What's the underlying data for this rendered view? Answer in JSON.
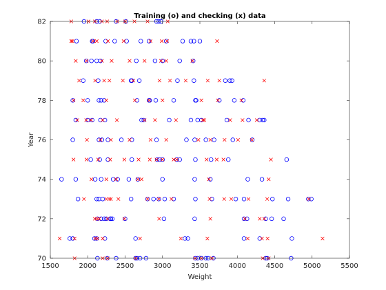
{
  "chart_data": {
    "type": "scatter",
    "title": "Training (o) and checking (x) data",
    "xlabel": "Weight",
    "ylabel": "Year",
    "xlim": [
      1500,
      5500
    ],
    "ylim": [
      70,
      82
    ],
    "xticks": [
      "1500",
      "2000",
      "2500",
      "3000",
      "3500",
      "4000",
      "4500",
      "5000",
      "5500"
    ],
    "yticks": [
      "70",
      "72",
      "74",
      "76",
      "78",
      "80",
      "82"
    ],
    "grid": false,
    "legend": "none",
    "series": [
      {
        "marker": "circle",
        "color": "#0000ff",
        "points": [
          [
            2130,
            70
          ],
          [
            2260,
            70
          ],
          [
            2380,
            70
          ],
          [
            2640,
            70
          ],
          [
            2660,
            70
          ],
          [
            2700,
            70
          ],
          [
            2780,
            70
          ],
          [
            3440,
            70
          ],
          [
            3470,
            70
          ],
          [
            3520,
            70
          ],
          [
            3580,
            70
          ],
          [
            3610,
            70
          ],
          [
            3680,
            70
          ],
          [
            4380,
            70
          ],
          [
            4400,
            70
          ],
          [
            4720,
            70
          ],
          [
            1760,
            71
          ],
          [
            1800,
            71
          ],
          [
            2090,
            71
          ],
          [
            2120,
            71
          ],
          [
            2230,
            71
          ],
          [
            2640,
            71
          ],
          [
            3300,
            71
          ],
          [
            3340,
            71
          ],
          [
            4090,
            71
          ],
          [
            4300,
            71
          ],
          [
            4730,
            71
          ],
          [
            2130,
            72
          ],
          [
            2180,
            72
          ],
          [
            2220,
            72
          ],
          [
            2250,
            72
          ],
          [
            2300,
            72
          ],
          [
            2310,
            72
          ],
          [
            2330,
            72
          ],
          [
            2500,
            72
          ],
          [
            3020,
            72
          ],
          [
            3430,
            72
          ],
          [
            4090,
            72
          ],
          [
            4130,
            72
          ],
          [
            4380,
            72
          ],
          [
            4460,
            72
          ],
          [
            4620,
            72
          ],
          [
            1870,
            73
          ],
          [
            2120,
            73
          ],
          [
            2150,
            73
          ],
          [
            2200,
            73
          ],
          [
            2580,
            73
          ],
          [
            2800,
            73
          ],
          [
            2880,
            73
          ],
          [
            2950,
            73
          ],
          [
            3030,
            73
          ],
          [
            3150,
            73
          ],
          [
            3440,
            73
          ],
          [
            3660,
            73
          ],
          [
            3980,
            73
          ],
          [
            4090,
            73
          ],
          [
            4470,
            73
          ],
          [
            4680,
            73
          ],
          [
            4950,
            73
          ],
          [
            4990,
            73
          ],
          [
            1650,
            74
          ],
          [
            1840,
            74
          ],
          [
            2100,
            74
          ],
          [
            2180,
            74
          ],
          [
            2340,
            74
          ],
          [
            2400,
            74
          ],
          [
            2550,
            74
          ],
          [
            2670,
            74
          ],
          [
            3000,
            74
          ],
          [
            3430,
            74
          ],
          [
            3640,
            74
          ],
          [
            4140,
            74
          ],
          [
            4330,
            74
          ],
          [
            2040,
            75
          ],
          [
            2160,
            75
          ],
          [
            2270,
            75
          ],
          [
            2590,
            75
          ],
          [
            2930,
            75
          ],
          [
            2960,
            75
          ],
          [
            3000,
            75
          ],
          [
            3190,
            75
          ],
          [
            3230,
            75
          ],
          [
            3440,
            75
          ],
          [
            3650,
            75
          ],
          [
            3880,
            75
          ],
          [
            4660,
            75
          ],
          [
            1800,
            76
          ],
          [
            2150,
            76
          ],
          [
            2190,
            76
          ],
          [
            2270,
            76
          ],
          [
            2450,
            76
          ],
          [
            2590,
            76
          ],
          [
            2920,
            76
          ],
          [
            3320,
            76
          ],
          [
            3430,
            76
          ],
          [
            3580,
            76
          ],
          [
            3690,
            76
          ],
          [
            3940,
            76
          ],
          [
            4200,
            76
          ],
          [
            1840,
            77
          ],
          [
            2000,
            77
          ],
          [
            2060,
            77
          ],
          [
            2170,
            77
          ],
          [
            2230,
            77
          ],
          [
            2720,
            77
          ],
          [
            2750,
            77
          ],
          [
            3090,
            77
          ],
          [
            3380,
            77
          ],
          [
            3470,
            77
          ],
          [
            3520,
            77
          ],
          [
            3860,
            77
          ],
          [
            4150,
            77
          ],
          [
            4300,
            77
          ],
          [
            4340,
            77
          ],
          [
            4360,
            77
          ],
          [
            1800,
            78
          ],
          [
            2000,
            78
          ],
          [
            2150,
            78
          ],
          [
            2180,
            78
          ],
          [
            2220,
            78
          ],
          [
            2660,
            78
          ],
          [
            2820,
            78
          ],
          [
            2830,
            78
          ],
          [
            2910,
            78
          ],
          [
            3150,
            78
          ],
          [
            3440,
            78
          ],
          [
            3450,
            78
          ],
          [
            3760,
            78
          ],
          [
            3960,
            78
          ],
          [
            4080,
            78
          ],
          [
            1940,
            79
          ],
          [
            2140,
            79
          ],
          [
            2580,
            79
          ],
          [
            2590,
            79
          ],
          [
            2690,
            79
          ],
          [
            3200,
            79
          ],
          [
            3420,
            79
          ],
          [
            3840,
            79
          ],
          [
            3900,
            79
          ],
          [
            3930,
            79
          ],
          [
            1980,
            80
          ],
          [
            2050,
            80
          ],
          [
            2120,
            80
          ],
          [
            2170,
            80
          ],
          [
            2650,
            80
          ],
          [
            2900,
            80
          ],
          [
            3000,
            80
          ],
          [
            3230,
            80
          ],
          [
            3410,
            80
          ],
          [
            1850,
            81
          ],
          [
            2060,
            81
          ],
          [
            2070,
            81
          ],
          [
            2240,
            81
          ],
          [
            2360,
            81
          ],
          [
            2520,
            81
          ],
          [
            2710,
            81
          ],
          [
            2820,
            81
          ],
          [
            3050,
            81
          ],
          [
            3270,
            81
          ],
          [
            3380,
            81
          ],
          [
            3420,
            81
          ],
          [
            3500,
            81
          ],
          [
            1950,
            82
          ],
          [
            2120,
            82
          ],
          [
            2160,
            82
          ],
          [
            2380,
            82
          ],
          [
            2510,
            82
          ],
          [
            2920,
            82
          ],
          [
            2950,
            82
          ],
          [
            2980,
            82
          ]
        ]
      },
      {
        "marker": "x",
        "color": "#ff0000",
        "points": [
          [
            1825,
            70
          ],
          [
            2200,
            70
          ],
          [
            2265,
            70
          ],
          [
            2640,
            70
          ],
          [
            3435,
            70
          ],
          [
            3520,
            70
          ],
          [
            3660,
            70
          ],
          [
            4340,
            70
          ],
          [
            4420,
            70
          ],
          [
            1625,
            71
          ],
          [
            1825,
            71
          ],
          [
            2100,
            71
          ],
          [
            2130,
            71
          ],
          [
            2200,
            71
          ],
          [
            2700,
            71
          ],
          [
            3245,
            71
          ],
          [
            3600,
            71
          ],
          [
            4140,
            71
          ],
          [
            4330,
            71
          ],
          [
            4405,
            71
          ],
          [
            5140,
            71
          ],
          [
            2095,
            72
          ],
          [
            2125,
            72
          ],
          [
            2155,
            72
          ],
          [
            2265,
            72
          ],
          [
            2490,
            72
          ],
          [
            2955,
            72
          ],
          [
            3640,
            72
          ],
          [
            4100,
            72
          ],
          [
            4300,
            72
          ],
          [
            4360,
            72
          ],
          [
            1950,
            73
          ],
          [
            2250,
            73
          ],
          [
            2290,
            73
          ],
          [
            2310,
            73
          ],
          [
            2410,
            73
          ],
          [
            2800,
            73
          ],
          [
            2950,
            73
          ],
          [
            3120,
            73
          ],
          [
            3630,
            73
          ],
          [
            3825,
            73
          ],
          [
            3920,
            73
          ],
          [
            4150,
            73
          ],
          [
            4400,
            73
          ],
          [
            4955,
            73
          ],
          [
            2050,
            74
          ],
          [
            2250,
            74
          ],
          [
            2380,
            74
          ],
          [
            2670,
            74
          ],
          [
            2720,
            74
          ],
          [
            3620,
            74
          ],
          [
            4420,
            74
          ],
          [
            1810,
            75
          ],
          [
            1985,
            75
          ],
          [
            2140,
            75
          ],
          [
            2300,
            75
          ],
          [
            2490,
            75
          ],
          [
            2680,
            75
          ],
          [
            2830,
            75
          ],
          [
            2920,
            75
          ],
          [
            3000,
            75
          ],
          [
            3150,
            75
          ],
          [
            3190,
            75
          ],
          [
            3590,
            75
          ],
          [
            3725,
            75
          ],
          [
            3815,
            75
          ],
          [
            4450,
            75
          ],
          [
            1990,
            76
          ],
          [
            2170,
            76
          ],
          [
            2310,
            76
          ],
          [
            2560,
            76
          ],
          [
            2840,
            76
          ],
          [
            3050,
            76
          ],
          [
            3480,
            76
          ],
          [
            3640,
            76
          ],
          [
            3830,
            76
          ],
          [
            4010,
            76
          ],
          [
            4195,
            76
          ],
          [
            1860,
            77
          ],
          [
            1980,
            77
          ],
          [
            2045,
            77
          ],
          [
            2200,
            77
          ],
          [
            2390,
            77
          ],
          [
            2760,
            77
          ],
          [
            2900,
            77
          ],
          [
            3180,
            77
          ],
          [
            3540,
            77
          ],
          [
            3560,
            77
          ],
          [
            3905,
            77
          ],
          [
            4070,
            77
          ],
          [
            4260,
            77
          ],
          [
            1810,
            78
          ],
          [
            1940,
            78
          ],
          [
            2250,
            78
          ],
          [
            2630,
            78
          ],
          [
            2820,
            78
          ],
          [
            3000,
            78
          ],
          [
            3520,
            78
          ],
          [
            3740,
            78
          ],
          [
            4055,
            78
          ],
          [
            1885,
            79
          ],
          [
            2100,
            79
          ],
          [
            2220,
            79
          ],
          [
            2290,
            79
          ],
          [
            2470,
            79
          ],
          [
            2610,
            79
          ],
          [
            2960,
            79
          ],
          [
            3100,
            79
          ],
          [
            3310,
            79
          ],
          [
            3605,
            79
          ],
          [
            3760,
            79
          ],
          [
            4360,
            79
          ],
          [
            1840,
            80
          ],
          [
            1985,
            80
          ],
          [
            2190,
            80
          ],
          [
            2320,
            80
          ],
          [
            2560,
            80
          ],
          [
            2760,
            80
          ],
          [
            2980,
            80
          ],
          [
            3050,
            80
          ],
          [
            3400,
            80
          ],
          [
            1780,
            81
          ],
          [
            1795,
            81
          ],
          [
            2070,
            81
          ],
          [
            2120,
            81
          ],
          [
            2270,
            81
          ],
          [
            2480,
            81
          ],
          [
            2840,
            81
          ],
          [
            2990,
            81
          ],
          [
            3060,
            81
          ],
          [
            3730,
            81
          ],
          [
            1780,
            82
          ],
          [
            2010,
            82
          ],
          [
            2095,
            82
          ],
          [
            2190,
            82
          ],
          [
            2260,
            82
          ],
          [
            2395,
            82
          ],
          [
            2500,
            82
          ],
          [
            2625,
            82
          ],
          [
            2800,
            82
          ],
          [
            3070,
            82
          ]
        ]
      }
    ]
  }
}
